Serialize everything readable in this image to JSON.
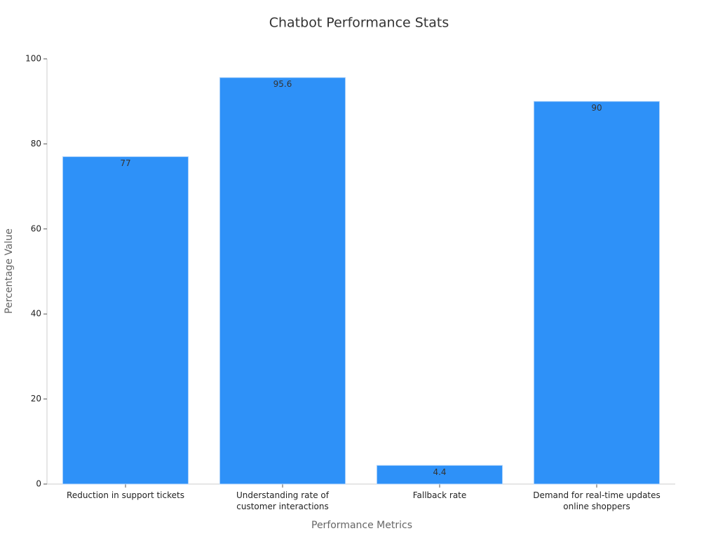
{
  "chart_data": {
    "type": "bar",
    "title": "Chatbot Performance Stats",
    "x_label": "Performance Metrics",
    "y_label": "Percentage Value",
    "categories": [
      "Reduction in support tickets",
      "Understanding rate of customer interactions",
      "Fallback rate",
      "Demand for real-time updates online shoppers"
    ],
    "values": [
      77,
      95.6,
      4.4,
      90
    ],
    "color": "#2e91f8",
    "ylim": [
      0,
      100
    ],
    "yticks": [
      0,
      20,
      40,
      60,
      80,
      100
    ],
    "grid": false
  }
}
